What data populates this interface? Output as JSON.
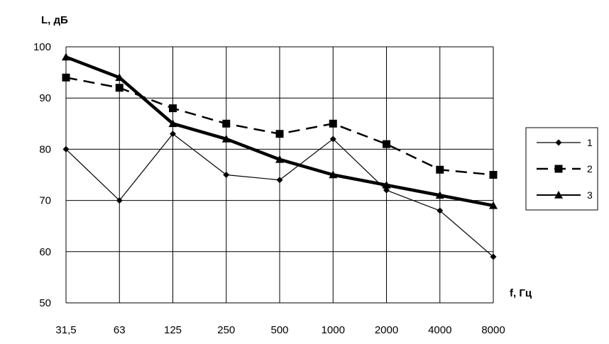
{
  "chart_data": {
    "type": "line",
    "xlabel": "f, Гц",
    "ylabel": "L, дБ",
    "categories": [
      "31,5",
      "63",
      "125",
      "250",
      "500",
      "1000",
      "2000",
      "4000",
      "8000"
    ],
    "ylim": [
      50,
      100
    ],
    "yticks": [
      "50",
      "60",
      "70",
      "80",
      "90",
      "100"
    ],
    "grid": true,
    "legend_position": "right",
    "series": [
      {
        "name": "1",
        "values": [
          80,
          70,
          83,
          75,
          74,
          82,
          72,
          68,
          59
        ],
        "marker": "diamond-icon",
        "line_style": "solid-thin"
      },
      {
        "name": "2",
        "values": [
          94,
          92,
          88,
          85,
          83,
          85,
          81,
          76,
          75
        ],
        "marker": "square-icon",
        "line_style": "dashed"
      },
      {
        "name": "3",
        "values": [
          98,
          94,
          85,
          82,
          78,
          75,
          73,
          71,
          69
        ],
        "marker": "triangle-icon",
        "line_style": "solid-thick"
      }
    ],
    "line_color": "#000000"
  }
}
